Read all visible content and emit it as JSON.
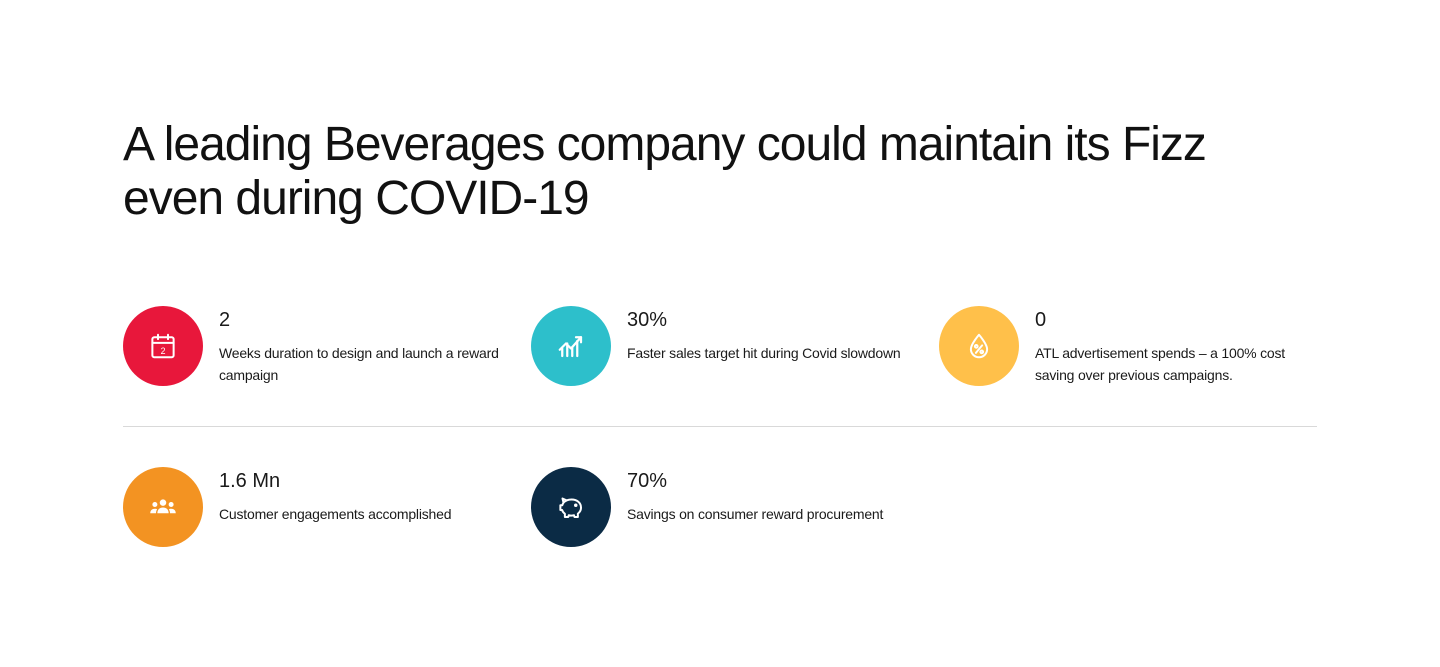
{
  "headline": "A leading Beverages company could maintain its Fizz even during COVID-19",
  "stats": [
    {
      "value": "2",
      "description": "Weeks duration to design and launch a reward campaign",
      "icon": "calendar-icon",
      "color": "#E8173B"
    },
    {
      "value": "30%",
      "description": "Faster sales target hit during Covid slowdown",
      "icon": "sales-growth-icon",
      "color": "#2DBFCB"
    },
    {
      "value": "0",
      "description": "ATL advertisement spends – a 100% cost saving over previous campaigns.",
      "icon": "percent-drop-icon",
      "color": "#FFC04A"
    },
    {
      "value": "1.6 Mn",
      "description": "Customer engagements accomplished",
      "icon": "people-group-icon",
      "color": "#F39322"
    },
    {
      "value": "70%",
      "description": "Savings on consumer reward procurement",
      "icon": "piggy-bank-icon",
      "color": "#0B2B45"
    }
  ],
  "calendar_day": "2"
}
